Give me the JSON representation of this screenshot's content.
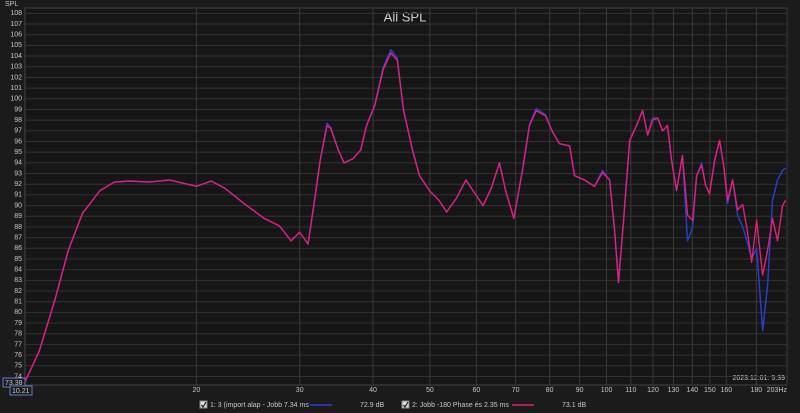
{
  "chart_data": {
    "type": "line",
    "title": "All SPL",
    "y_label": "SPL",
    "timestamp": "2023.12.01. 5:39",
    "cursor": {
      "y": "73.38",
      "x": "10.21"
    },
    "log_x": true,
    "grid": true,
    "xlim": [
      10.21,
      203
    ],
    "ylim": [
      73.2,
      108.5
    ],
    "xticks": [
      20,
      30,
      40,
      50,
      60,
      70,
      80,
      90,
      100,
      110,
      120,
      130,
      140,
      150,
      160,
      180,
      {
        "value": 203,
        "label": "203Hz"
      }
    ],
    "yticks": [
      74,
      75,
      76,
      77,
      78,
      79,
      80,
      81,
      82,
      83,
      84,
      85,
      86,
      87,
      88,
      89,
      90,
      91,
      92,
      93,
      94,
      95,
      96,
      97,
      98,
      99,
      100,
      101,
      102,
      103,
      104,
      105,
      106,
      107,
      108
    ],
    "x": [
      10.21,
      10.8,
      11.5,
      12.1,
      12.8,
      13.7,
      14.5,
      15.4,
      16.6,
      18.0,
      20.0,
      21.2,
      22.4,
      24.1,
      26.1,
      27.7,
      29.0,
      30.0,
      31.0,
      31.8,
      32.5,
      33.4,
      33.9,
      34.9,
      35.7,
      37.0,
      38.1,
      39.0,
      40.3,
      41.6,
      42.9,
      44.0,
      45.1,
      46.7,
      48.0,
      49.9,
      51.8,
      53.4,
      55.5,
      57.6,
      59.2,
      61.6,
      63.6,
      65.7,
      67.3,
      69.5,
      71.9,
      73.9,
      75.9,
      78.7,
      80.9,
      83.1,
      86.5,
      88.2,
      91.7,
      95.4,
      98.4,
      101.2,
      103.2,
      104.8,
      106.9,
      109.5,
      112.5,
      115.2,
      117.5,
      119.8,
      122.2,
      124.6,
      127.0,
      129.1,
      131.6,
      134.7,
      137.4,
      140.2,
      142.4,
      145.2,
      147.5,
      149.8,
      152.8,
      155.8,
      158.3,
      160.8,
      164.0,
      167.2,
      170.6,
      173.9,
      176.7,
      180.2,
      184.5,
      188.1,
      191.8,
      195.6,
      199.5,
      201.9
    ],
    "series": [
      {
        "name": "1: 3 (import alap - Jobb 7.34 ms",
        "level": "72.9 dB",
        "color": "#2a3fd0",
        "values": [
          73.5,
          76.4,
          81.3,
          85.8,
          89.3,
          91.4,
          92.2,
          92.3,
          92.2,
          92.4,
          91.8,
          92.3,
          91.6,
          90.2,
          88.8,
          88.1,
          86.7,
          87.5,
          86.4,
          90.5,
          94.2,
          97.7,
          97.3,
          95.2,
          94.0,
          94.4,
          95.2,
          97.5,
          99.5,
          102.9,
          104.6,
          103.8,
          98.9,
          95.2,
          92.8,
          91.4,
          90.5,
          89.4,
          90.7,
          92.4,
          91.4,
          90.0,
          91.6,
          94.0,
          91.4,
          88.8,
          93.3,
          97.6,
          99.1,
          98.5,
          96.9,
          95.8,
          95.6,
          92.8,
          92.4,
          91.8,
          93.3,
          92.4,
          87.7,
          82.8,
          88.6,
          96.1,
          97.5,
          98.9,
          96.6,
          98.2,
          98.2,
          97.0,
          97.5,
          94.2,
          91.4,
          94.7,
          86.7,
          88.0,
          92.8,
          94.0,
          91.9,
          91.1,
          94.2,
          96.1,
          93.8,
          90.2,
          92.4,
          89.1,
          88.0,
          86.5,
          85.0,
          86.0,
          78.3,
          82.5,
          90.5,
          92.4,
          93.3,
          93.5
        ]
      },
      {
        "name": "2: Jobb -180 Phase és 2.35 ms",
        "level": "73.1 dB",
        "color": "#e0207a",
        "values": [
          73.5,
          76.4,
          81.3,
          85.8,
          89.3,
          91.4,
          92.2,
          92.3,
          92.2,
          92.4,
          91.8,
          92.3,
          91.6,
          90.2,
          88.8,
          88.1,
          86.7,
          87.5,
          86.4,
          90.5,
          94.2,
          97.5,
          97.2,
          95.2,
          94.0,
          94.4,
          95.2,
          97.5,
          99.4,
          102.7,
          104.3,
          103.6,
          98.9,
          95.2,
          92.8,
          91.4,
          90.5,
          89.4,
          90.7,
          92.4,
          91.4,
          90.0,
          91.6,
          94.0,
          91.4,
          88.8,
          93.3,
          97.5,
          98.9,
          98.4,
          96.9,
          95.8,
          95.6,
          92.8,
          92.4,
          91.8,
          93.1,
          92.4,
          87.7,
          82.8,
          88.6,
          96.1,
          97.5,
          98.9,
          96.6,
          98.0,
          98.2,
          97.0,
          97.5,
          94.2,
          91.4,
          94.7,
          89.1,
          88.6,
          92.8,
          93.8,
          91.9,
          91.1,
          94.2,
          96.1,
          93.8,
          90.5,
          92.4,
          89.6,
          90.1,
          87.5,
          84.7,
          88.6,
          83.5,
          85.8,
          88.8,
          86.7,
          90.0,
          90.5
        ]
      }
    ]
  }
}
